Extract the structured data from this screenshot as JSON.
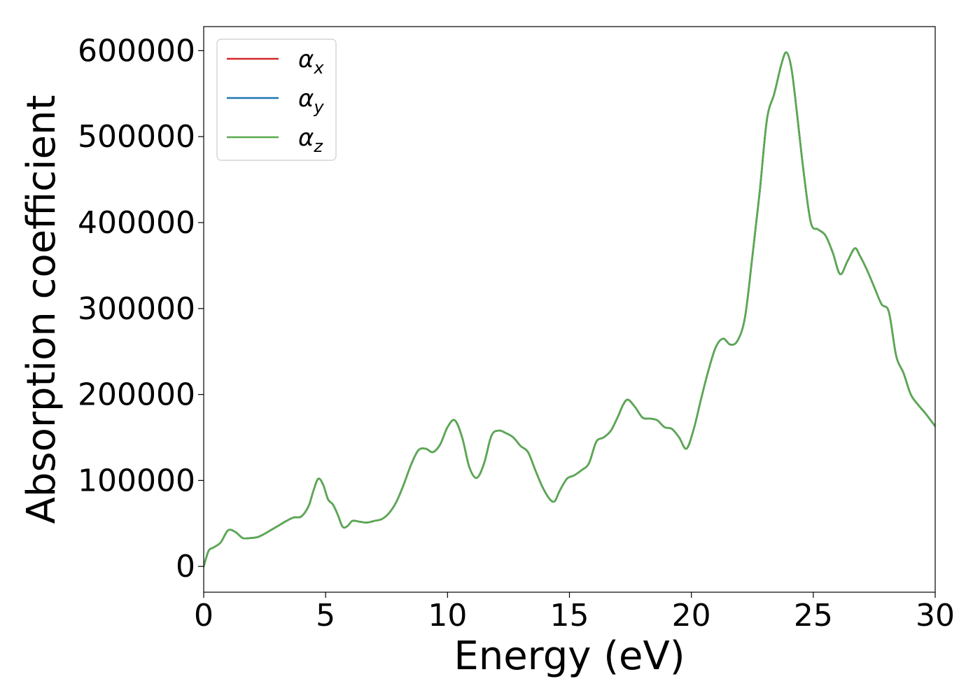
{
  "chart_data": {
    "type": "line",
    "title": "",
    "xlabel": "Energy (eV)",
    "ylabel": "Absorption coefficient",
    "xlim": [
      0,
      30
    ],
    "ylim": [
      -30000,
      628000
    ],
    "xticks": [
      0,
      5,
      10,
      15,
      20,
      25,
      30
    ],
    "yticks": [
      0,
      100000,
      200000,
      300000,
      400000,
      500000,
      600000
    ],
    "grid": false,
    "legend_position": "top-left",
    "x": [
      0,
      0.2,
      0.4,
      0.7,
      1.0,
      1.3,
      1.6,
      1.9,
      2.2,
      2.5,
      2.8,
      3.1,
      3.4,
      3.7,
      4.0,
      4.3,
      4.5,
      4.7,
      4.9,
      5.1,
      5.3,
      5.5,
      5.7,
      5.9,
      6.1,
      6.4,
      6.7,
      7.0,
      7.3,
      7.6,
      7.9,
      8.2,
      8.5,
      8.8,
      9.1,
      9.4,
      9.7,
      10.0,
      10.3,
      10.6,
      10.9,
      11.2,
      11.5,
      11.8,
      12.1,
      12.4,
      12.7,
      13.0,
      13.3,
      13.6,
      13.9,
      14.2,
      14.4,
      14.6,
      14.9,
      15.2,
      15.5,
      15.8,
      16.1,
      16.4,
      16.7,
      17.0,
      17.2,
      17.4,
      17.7,
      18.0,
      18.3,
      18.6,
      18.9,
      19.2,
      19.5,
      19.8,
      20.1,
      20.4,
      20.7,
      21.0,
      21.3,
      21.6,
      21.9,
      22.2,
      22.5,
      22.8,
      23.1,
      23.4,
      23.7,
      23.9,
      24.1,
      24.3,
      24.6,
      24.9,
      25.2,
      25.5,
      25.8,
      26.1,
      26.4,
      26.7,
      26.9,
      27.2,
      27.5,
      27.8,
      28.1,
      28.4,
      28.7,
      29.0,
      29.3,
      29.6,
      30.0
    ],
    "series": [
      {
        "name": "α_x",
        "name_base": "α",
        "name_sub": "x",
        "color": "#d62728",
        "values": [
          0,
          18000,
          22000,
          28000,
          42000,
          40000,
          33000,
          33000,
          34000,
          38000,
          43000,
          48000,
          53000,
          57000,
          58000,
          70000,
          88000,
          102000,
          95000,
          78000,
          72000,
          60000,
          46000,
          47000,
          53000,
          52000,
          51000,
          53000,
          55000,
          62000,
          75000,
          95000,
          118000,
          135000,
          137000,
          133000,
          142000,
          162000,
          170000,
          150000,
          115000,
          103000,
          120000,
          152000,
          158000,
          155000,
          150000,
          140000,
          133000,
          112000,
          92000,
          78000,
          76000,
          88000,
          102000,
          106000,
          112000,
          120000,
          145000,
          150000,
          158000,
          175000,
          188000,
          194000,
          185000,
          173000,
          172000,
          170000,
          162000,
          160000,
          150000,
          137000,
          160000,
          195000,
          228000,
          255000,
          265000,
          258000,
          263000,
          290000,
          360000,
          435000,
          520000,
          550000,
          585000,
          598000,
          580000,
          535000,
          460000,
          400000,
          392000,
          385000,
          365000,
          340000,
          355000,
          370000,
          362000,
          345000,
          325000,
          305000,
          296000,
          245000,
          225000,
          200000,
          188000,
          178000,
          163000
        ]
      },
      {
        "name": "α_y",
        "name_base": "α",
        "name_sub": "y",
        "color": "#1f77b4",
        "values": [
          0,
          18000,
          22000,
          28000,
          42000,
          40000,
          33000,
          33000,
          34000,
          38000,
          43000,
          48000,
          53000,
          57000,
          58000,
          70000,
          88000,
          102000,
          95000,
          78000,
          72000,
          60000,
          46000,
          47000,
          53000,
          52000,
          51000,
          53000,
          55000,
          62000,
          75000,
          95000,
          118000,
          135000,
          137000,
          133000,
          142000,
          162000,
          170000,
          150000,
          115000,
          103000,
          120000,
          152000,
          158000,
          155000,
          150000,
          140000,
          133000,
          112000,
          92000,
          78000,
          76000,
          88000,
          102000,
          106000,
          112000,
          120000,
          145000,
          150000,
          158000,
          175000,
          188000,
          194000,
          185000,
          173000,
          172000,
          170000,
          162000,
          160000,
          150000,
          137000,
          160000,
          195000,
          228000,
          255000,
          265000,
          258000,
          263000,
          290000,
          360000,
          435000,
          520000,
          550000,
          585000,
          598000,
          580000,
          535000,
          460000,
          400000,
          392000,
          385000,
          365000,
          340000,
          355000,
          370000,
          362000,
          345000,
          325000,
          305000,
          296000,
          245000,
          225000,
          200000,
          188000,
          178000,
          163000
        ]
      },
      {
        "name": "α_z",
        "name_base": "α",
        "name_sub": "z",
        "color": "#5aaa4f",
        "values": [
          0,
          18000,
          22000,
          28000,
          42000,
          40000,
          33000,
          33000,
          34000,
          38000,
          43000,
          48000,
          53000,
          57000,
          58000,
          70000,
          88000,
          102000,
          95000,
          78000,
          72000,
          60000,
          46000,
          47000,
          53000,
          52000,
          51000,
          53000,
          55000,
          62000,
          75000,
          95000,
          118000,
          135000,
          137000,
          133000,
          142000,
          162000,
          170000,
          150000,
          115000,
          103000,
          120000,
          152000,
          158000,
          155000,
          150000,
          140000,
          133000,
          112000,
          92000,
          78000,
          76000,
          88000,
          102000,
          106000,
          112000,
          120000,
          145000,
          150000,
          158000,
          175000,
          188000,
          194000,
          185000,
          173000,
          172000,
          170000,
          162000,
          160000,
          150000,
          137000,
          160000,
          195000,
          228000,
          255000,
          265000,
          258000,
          263000,
          290000,
          360000,
          435000,
          520000,
          550000,
          585000,
          598000,
          580000,
          535000,
          460000,
          400000,
          392000,
          385000,
          365000,
          340000,
          355000,
          370000,
          362000,
          345000,
          325000,
          305000,
          296000,
          245000,
          225000,
          200000,
          188000,
          178000,
          163000
        ]
      }
    ]
  }
}
